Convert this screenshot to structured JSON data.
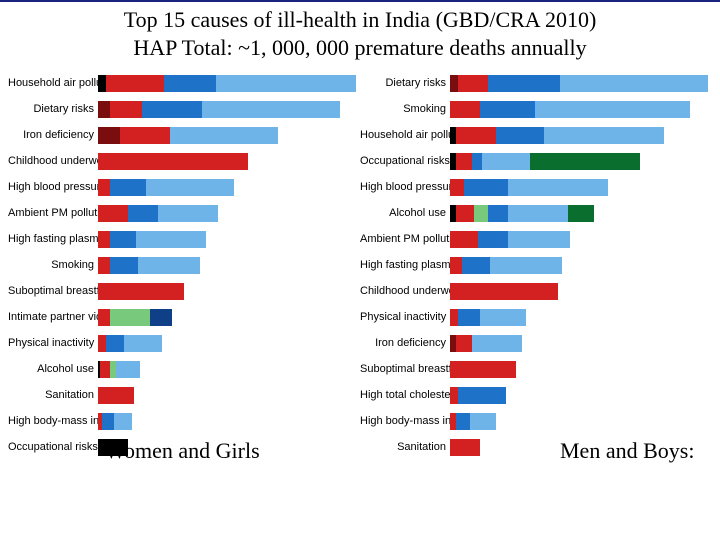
{
  "title": {
    "line1": "Top 15 causes of ill-health in India (GBD/CRA 2010)",
    "line2": "HAP Total: ~1, 000, 000 premature deaths annually"
  },
  "captions": {
    "left": "Women and Girls",
    "right": "Men and Boys:"
  },
  "colors": {
    "red": "#d32020",
    "darkred": "#7a0e0e",
    "blue": "#1e73c8",
    "lightblue": "#6fb4e8",
    "navy": "#0f3f87",
    "green": "#0a6e2e",
    "lightgreen": "#79c97c",
    "black": "#000000"
  },
  "left_max": 258,
  "right_max": 258,
  "left": [
    {
      "label": "Household air pollution",
      "segs": [
        [
          "black",
          8
        ],
        [
          "red",
          58
        ],
        [
          "blue",
          52
        ],
        [
          "lightblue",
          140
        ]
      ]
    },
    {
      "label": "Dietary risks",
      "segs": [
        [
          "darkred",
          12
        ],
        [
          "red",
          32
        ],
        [
          "blue",
          60
        ],
        [
          "lightblue",
          138
        ]
      ]
    },
    {
      "label": "Iron deficiency",
      "segs": [
        [
          "darkred",
          22
        ],
        [
          "red",
          50
        ],
        [
          "lightblue",
          108
        ]
      ]
    },
    {
      "label": "Childhood underweight",
      "segs": [
        [
          "red",
          150
        ]
      ]
    },
    {
      "label": "High blood pressure",
      "segs": [
        [
          "red",
          12
        ],
        [
          "blue",
          36
        ],
        [
          "lightblue",
          88
        ]
      ]
    },
    {
      "label": "Ambient PM pollution",
      "segs": [
        [
          "red",
          30
        ],
        [
          "blue",
          30
        ],
        [
          "lightblue",
          60
        ]
      ]
    },
    {
      "label": "High fasting plasma glucose",
      "segs": [
        [
          "red",
          12
        ],
        [
          "blue",
          26
        ],
        [
          "lightblue",
          70
        ]
      ]
    },
    {
      "label": "Smoking",
      "segs": [
        [
          "red",
          12
        ],
        [
          "blue",
          28
        ],
        [
          "lightblue",
          62
        ]
      ]
    },
    {
      "label": "Suboptimal breastfeeding",
      "segs": [
        [
          "red",
          86
        ]
      ]
    },
    {
      "label": "Intimate partner violence",
      "segs": [
        [
          "red",
          12
        ],
        [
          "lightgreen",
          40
        ],
        [
          "navy",
          22
        ]
      ]
    },
    {
      "label": "Physical inactivity",
      "segs": [
        [
          "red",
          8
        ],
        [
          "blue",
          18
        ],
        [
          "lightblue",
          38
        ]
      ]
    },
    {
      "label": "Alcohol use",
      "segs": [
        [
          "black",
          2
        ],
        [
          "red",
          10
        ],
        [
          "lightgreen",
          6
        ],
        [
          "lightblue",
          24
        ]
      ]
    },
    {
      "label": "Sanitation",
      "segs": [
        [
          "red",
          36
        ]
      ]
    },
    {
      "label": "High body-mass index",
      "segs": [
        [
          "red",
          4
        ],
        [
          "blue",
          12
        ],
        [
          "lightblue",
          18
        ]
      ]
    },
    {
      "label": "Occupational risks",
      "segs": [
        [
          "black",
          30
        ]
      ]
    }
  ],
  "right": [
    {
      "label": "Dietary risks",
      "segs": [
        [
          "darkred",
          8
        ],
        [
          "red",
          30
        ],
        [
          "blue",
          72
        ],
        [
          "lightblue",
          148
        ]
      ]
    },
    {
      "label": "Smoking",
      "segs": [
        [
          "red",
          30
        ],
        [
          "blue",
          55
        ],
        [
          "lightblue",
          155
        ]
      ]
    },
    {
      "label": "Household air pollution",
      "segs": [
        [
          "black",
          6
        ],
        [
          "red",
          40
        ],
        [
          "blue",
          48
        ],
        [
          "lightblue",
          120
        ]
      ]
    },
    {
      "label": "Occupational risks",
      "segs": [
        [
          "black",
          6
        ],
        [
          "red",
          16
        ],
        [
          "blue",
          10
        ],
        [
          "lightblue",
          48
        ],
        [
          "green",
          110
        ]
      ]
    },
    {
      "label": "High blood pressure",
      "segs": [
        [
          "red",
          14
        ],
        [
          "blue",
          44
        ],
        [
          "lightblue",
          100
        ]
      ]
    },
    {
      "label": "Alcohol use",
      "segs": [
        [
          "black",
          6
        ],
        [
          "red",
          18
        ],
        [
          "lightgreen",
          14
        ],
        [
          "blue",
          20
        ],
        [
          "lightblue",
          60
        ],
        [
          "green",
          26
        ]
      ]
    },
    {
      "label": "Ambient PM pollution",
      "segs": [
        [
          "red",
          28
        ],
        [
          "blue",
          30
        ],
        [
          "lightblue",
          62
        ]
      ]
    },
    {
      "label": "High fasting plasma glucose",
      "segs": [
        [
          "red",
          12
        ],
        [
          "blue",
          28
        ],
        [
          "lightblue",
          72
        ]
      ]
    },
    {
      "label": "Childhood underweight",
      "segs": [
        [
          "red",
          108
        ]
      ]
    },
    {
      "label": "Physical inactivity",
      "segs": [
        [
          "red",
          8
        ],
        [
          "blue",
          22
        ],
        [
          "lightblue",
          46
        ]
      ]
    },
    {
      "label": "Iron deficiency",
      "segs": [
        [
          "darkred",
          6
        ],
        [
          "red",
          16
        ],
        [
          "lightblue",
          50
        ]
      ]
    },
    {
      "label": "Suboptimal breastfeeding",
      "segs": [
        [
          "red",
          66
        ]
      ]
    },
    {
      "label": "High total cholesterol",
      "segs": [
        [
          "red",
          8
        ],
        [
          "blue",
          48
        ]
      ]
    },
    {
      "label": "High body-mass index",
      "segs": [
        [
          "red",
          6
        ],
        [
          "blue",
          14
        ],
        [
          "lightblue",
          26
        ]
      ]
    },
    {
      "label": "Sanitation",
      "segs": [
        [
          "red",
          30
        ]
      ]
    }
  ]
}
